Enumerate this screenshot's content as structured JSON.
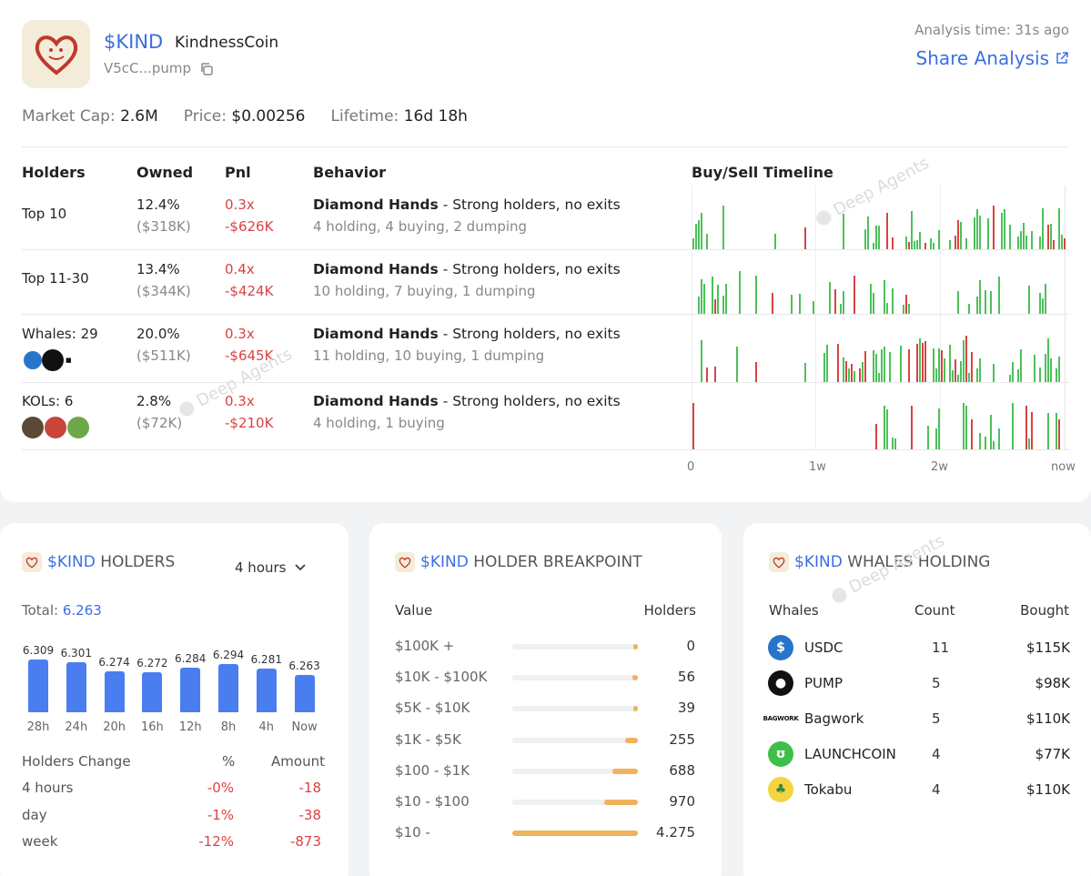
{
  "token": {
    "symbol": "$KIND",
    "name": "KindnessCoin",
    "address": "V5cC...pump",
    "logo_icon": "heart-logo-icon"
  },
  "analysis": {
    "time": "Analysis time: 31s ago",
    "share": "Share Analysis"
  },
  "stats": {
    "mc_label": "Market Cap:",
    "mc": "2.6M",
    "price_label": "Price:",
    "price": "$0.00256",
    "life_label": "Lifetime:",
    "life": "16d 18h"
  },
  "headers": {
    "holders": "Holders",
    "owned": "Owned",
    "pnl": "Pnl",
    "behavior": "Behavior",
    "timeline": "Buy/Sell Timeline"
  },
  "rows": [
    {
      "name": "Top 10",
      "pct": "12.4%",
      "usd": "($318K)",
      "pnl_x": "0.3x",
      "pnl_usd": "-$626K",
      "title": "Diamond Hands",
      "desc": " - Strong holders, no exits",
      "sub": "4 holding, 4 buying, 2 dumping"
    },
    {
      "name": "Top 11-30",
      "pct": "13.4%",
      "usd": "($344K)",
      "pnl_x": "0.4x",
      "pnl_usd": "-$424K",
      "title": "Diamond Hands",
      "desc": " - Strong holders, no exits",
      "sub": "10 holding, 7 buying, 1 dumping"
    },
    {
      "name": "Whales: 29",
      "pct": "20.0%",
      "usd": "($511K)",
      "pnl_x": "0.3x",
      "pnl_usd": "-$645K",
      "title": "Diamond Hands",
      "desc": " - Strong holders, no exits",
      "sub": "11 holding, 10 buying, 1 dumping"
    },
    {
      "name": "KOLs: 6",
      "pct": "2.8%",
      "usd": "($72K)",
      "pnl_x": "0.3x",
      "pnl_usd": "-$210K",
      "title": "Diamond Hands",
      "desc": " - Strong holders, no exits",
      "sub": "4 holding, 1 buying"
    }
  ],
  "timeline_ticks": [
    "0",
    "1w",
    "2w",
    "now"
  ],
  "watermark": "Deep Agents",
  "holders_card": {
    "symbol": "$KIND",
    "title": " HOLDERS",
    "period": "4 hours",
    "total_label": "Total: ",
    "total": "6.263",
    "bars": [
      {
        "l": "28h",
        "v": "6.309",
        "n": 6309
      },
      {
        "l": "24h",
        "v": "6.301",
        "n": 6301
      },
      {
        "l": "20h",
        "v": "6.274",
        "n": 6274
      },
      {
        "l": "16h",
        "v": "6.272",
        "n": 6272
      },
      {
        "l": "12h",
        "v": "6.284",
        "n": 6284
      },
      {
        "l": "8h",
        "v": "6.294",
        "n": 6294
      },
      {
        "l": "4h",
        "v": "6.281",
        "n": 6281
      },
      {
        "l": "Now",
        "v": "6.263",
        "n": 6263
      }
    ],
    "change_head": [
      "Holders Change",
      "%",
      "Amount"
    ],
    "changes": [
      [
        "4 hours",
        "-0%",
        "-18"
      ],
      [
        "day",
        "-1%",
        "-38"
      ],
      [
        "week",
        "-12%",
        "-873"
      ]
    ]
  },
  "breakpoint_card": {
    "symbol": "$KIND",
    "title": " HOLDER BREAKPOINT",
    "col1": "Value",
    "col2": "Holders",
    "rows": [
      {
        "range": "$100K +",
        "count": "0",
        "fill": 0.02
      },
      {
        "range": "$10K - $100K",
        "count": "56",
        "fill": 0.04
      },
      {
        "range": "$5K - $10K",
        "count": "39",
        "fill": 0.03
      },
      {
        "range": "$1K - $5K",
        "count": "255",
        "fill": 0.1
      },
      {
        "range": "$100 - $1K",
        "count": "688",
        "fill": 0.2
      },
      {
        "range": "$10 - $100",
        "count": "970",
        "fill": 0.27
      },
      {
        "range": "$10 -",
        "count": "4.275",
        "fill": 1.0
      }
    ]
  },
  "whales_card": {
    "symbol": "$KIND",
    "title": " WHALES HOLDING",
    "cols": [
      "Whales",
      "Count",
      "Bought"
    ],
    "rows": [
      {
        "name": "USDC",
        "count": "11",
        "bought": "$115K",
        "icon": "usdc-icon",
        "color": "#2775ca"
      },
      {
        "name": "PUMP",
        "count": "5",
        "bought": "$98K",
        "icon": "pump-pill-icon",
        "color": "#111111"
      },
      {
        "name": "Bagwork",
        "count": "5",
        "bought": "$110K",
        "icon": "bagwork-logo-icon",
        "color": "#ffffff"
      },
      {
        "name": "LAUNCHCOIN",
        "count": "4",
        "bought": "$77K",
        "icon": "launchcoin-icon",
        "color": "#3fbf4a"
      },
      {
        "name": "Tokabu",
        "count": "4",
        "bought": "$110K",
        "icon": "tokabu-icon",
        "color": "#f5d442"
      }
    ]
  },
  "colors": {
    "accent": "#3b6fe0",
    "buy": "#4cc15a",
    "sell": "#d94343",
    "bar": "#4a7ef0",
    "breakpoint": "#f0b25a"
  }
}
